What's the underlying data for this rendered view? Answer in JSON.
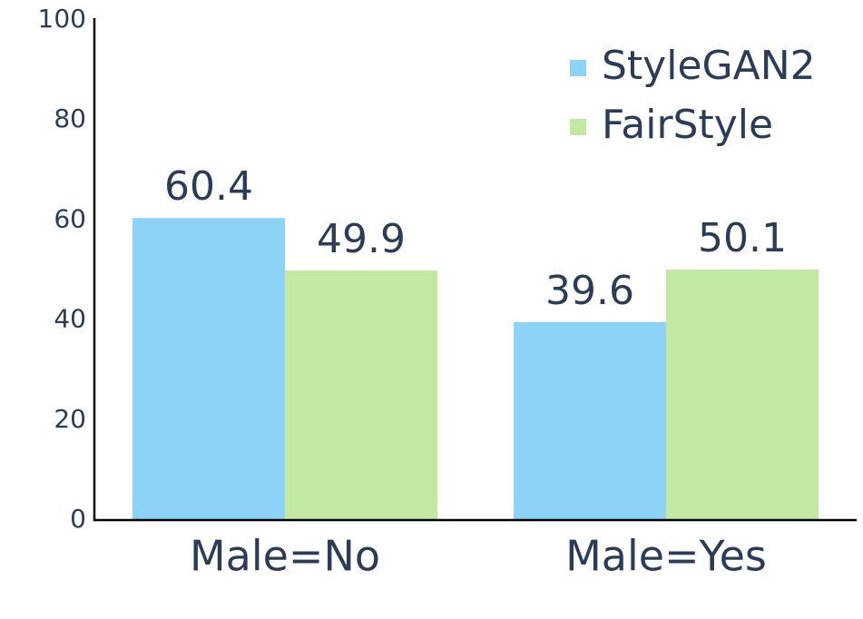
{
  "chart_data": {
    "type": "bar",
    "categories": [
      "Male=No",
      "Male=Yes"
    ],
    "series": [
      {
        "name": "StyleGAN2",
        "color": "#8dd3f5",
        "values": [
          60.4,
          39.6
        ]
      },
      {
        "name": "FairStyle",
        "color": "#c2e8a3",
        "values": [
          49.9,
          50.1
        ]
      }
    ],
    "ylim": [
      0,
      100
    ],
    "yticks": [
      0,
      20,
      40,
      60,
      80,
      100
    ],
    "grid": false,
    "legend": "upper right"
  }
}
